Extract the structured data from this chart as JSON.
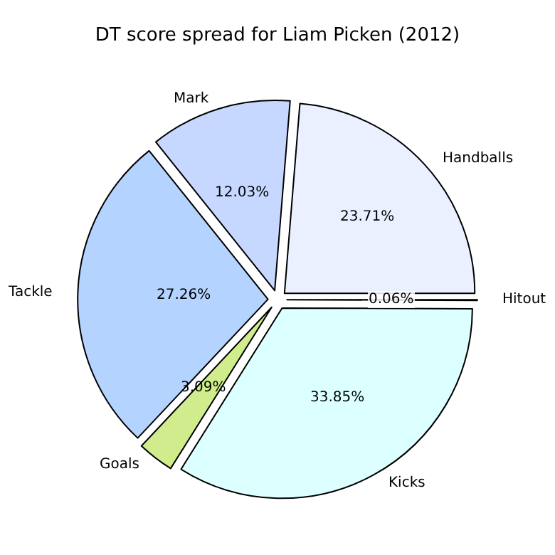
{
  "chart_data": {
    "type": "pie",
    "title": "DT score spread for Liam Picken (2012)",
    "categories": [
      "Hitout",
      "Handballs",
      "Mark",
      "Tackle",
      "Goals",
      "Kicks"
    ],
    "values": [
      0.06,
      23.71,
      12.03,
      27.26,
      3.09,
      33.85
    ],
    "value_labels": [
      "0.06%",
      "23.71%",
      "12.03%",
      "27.26%",
      "3.09%",
      "33.85%"
    ],
    "colors": [
      "#f0f0ff",
      "#eaf0ff",
      "#c6d8ff",
      "#b4d4ff",
      "#d0ec8c",
      "#dcffff"
    ],
    "legend": false
  }
}
